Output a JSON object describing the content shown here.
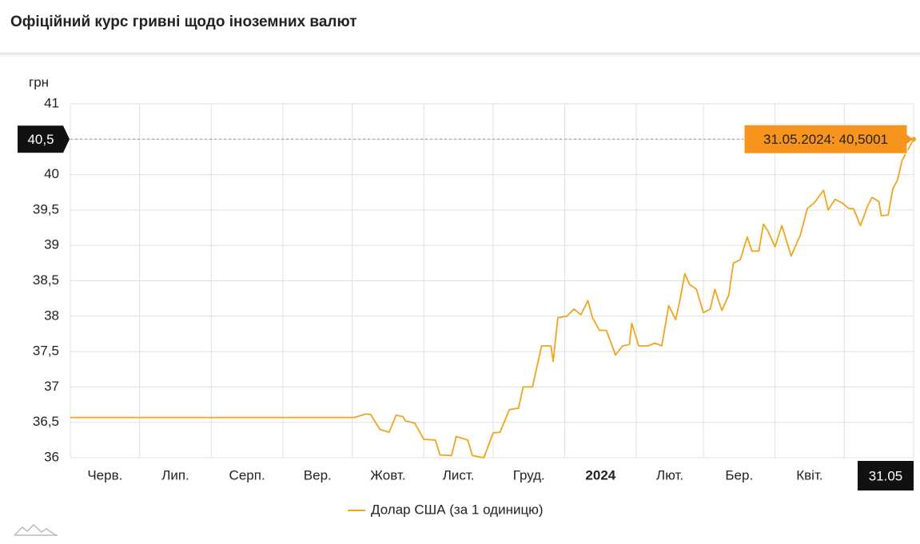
{
  "chart_data": {
    "type": "line",
    "title": "Офіційний курс гривні щодо іноземних валют",
    "y_label": "грн",
    "x": [
      "2023-06-01",
      "2023-10-02",
      "2023-10-07",
      "2023-10-09",
      "2023-10-13",
      "2023-10-17",
      "2023-10-20",
      "2023-10-23",
      "2023-10-24",
      "2023-10-28",
      "2023-11-01",
      "2023-11-06",
      "2023-11-08",
      "2023-11-13",
      "2023-11-15",
      "2023-11-20",
      "2023-11-22",
      "2023-11-27",
      "2023-12-01",
      "2023-12-04",
      "2023-12-08",
      "2023-12-12",
      "2023-12-14",
      "2023-12-18",
      "2023-12-22",
      "2023-12-26",
      "2023-12-27",
      "2023-12-29",
      "2024-01-02",
      "2024-01-05",
      "2024-01-08",
      "2024-01-11",
      "2024-01-13",
      "2024-01-16",
      "2024-01-19",
      "2024-01-23",
      "2024-01-26",
      "2024-01-29",
      "2024-01-30",
      "2024-02-02",
      "2024-02-06",
      "2024-02-09",
      "2024-02-12",
      "2024-02-15",
      "2024-02-18",
      "2024-02-20",
      "2024-02-22",
      "2024-02-24",
      "2024-02-27",
      "2024-03-01",
      "2024-03-04",
      "2024-03-06",
      "2024-03-09",
      "2024-03-12",
      "2024-03-14",
      "2024-03-17",
      "2024-03-20",
      "2024-03-22",
      "2024-03-25",
      "2024-03-27",
      "2024-03-29",
      "2024-04-01",
      "2024-04-04",
      "2024-04-08",
      "2024-04-12",
      "2024-04-15",
      "2024-04-18",
      "2024-04-22",
      "2024-04-24",
      "2024-04-27",
      "2024-04-30",
      "2024-05-03",
      "2024-05-05",
      "2024-05-08",
      "2024-05-11",
      "2024-05-13",
      "2024-05-16",
      "2024-05-17",
      "2024-05-20",
      "2024-05-22",
      "2024-05-24",
      "2024-05-26",
      "2024-05-31"
    ],
    "series": [
      {
        "name": "Долар США (за 1 одиницю)",
        "color": "#f0a51e",
        "values": [
          36.5686,
          36.5686,
          36.62,
          36.61,
          36.4,
          36.36,
          36.6,
          36.58,
          36.52,
          36.49,
          36.26,
          36.25,
          36.04,
          36.03,
          36.3,
          36.25,
          36.03,
          36.0,
          36.35,
          36.36,
          36.68,
          36.7,
          37.0,
          37.0,
          37.58,
          37.58,
          37.36,
          37.98,
          38.0,
          38.1,
          38.02,
          38.22,
          37.98,
          37.8,
          37.8,
          37.45,
          37.58,
          37.6,
          37.9,
          37.58,
          37.58,
          37.62,
          37.58,
          38.15,
          37.95,
          38.25,
          38.6,
          38.45,
          38.38,
          38.05,
          38.1,
          38.38,
          38.08,
          38.3,
          38.75,
          38.8,
          39.12,
          38.92,
          38.92,
          39.3,
          39.2,
          38.98,
          39.28,
          38.85,
          39.15,
          39.52,
          39.6,
          39.78,
          39.5,
          39.65,
          39.6,
          39.52,
          39.52,
          39.28,
          39.55,
          39.68,
          39.62,
          39.42,
          39.43,
          39.8,
          39.92,
          40.2,
          40.5001
        ]
      }
    ],
    "xlim": [
      "2023-06-01",
      "2024-05-31"
    ],
    "xticks": [
      {
        "value": "2023-06-01",
        "label": "Черв."
      },
      {
        "value": "2023-07-01",
        "label": "Лип."
      },
      {
        "value": "2023-08-01",
        "label": "Серп."
      },
      {
        "value": "2023-09-01",
        "label": "Вер."
      },
      {
        "value": "2023-10-01",
        "label": "Жовт."
      },
      {
        "value": "2023-11-01",
        "label": "Лист."
      },
      {
        "value": "2023-12-01",
        "label": "Груд."
      },
      {
        "value": "2024-01-01",
        "label": "2024",
        "bold": true
      },
      {
        "value": "2024-02-01",
        "label": "Лют."
      },
      {
        "value": "2024-03-01",
        "label": "Бер."
      },
      {
        "value": "2024-04-01",
        "label": "Квіт."
      },
      {
        "value": "2024-05-01",
        "label": null
      }
    ],
    "ylim": [
      36,
      41
    ],
    "yticks": [
      36,
      {
        "value": 36.5,
        "label": "36,5"
      },
      37,
      {
        "value": 37.5,
        "label": "37,5"
      },
      38,
      {
        "value": 38.5,
        "label": "38,5"
      },
      39,
      {
        "value": 39.5,
        "label": "39,5"
      },
      40,
      {
        "value": 40.5,
        "label": "40,5"
      },
      41
    ],
    "grid": true,
    "legend": "bottom",
    "crosshair": {
      "x_label": "31.05",
      "y_label": "40,5",
      "tooltip": "31.05.2024: 40,5001",
      "tooltip_color": "#f7941d"
    }
  }
}
